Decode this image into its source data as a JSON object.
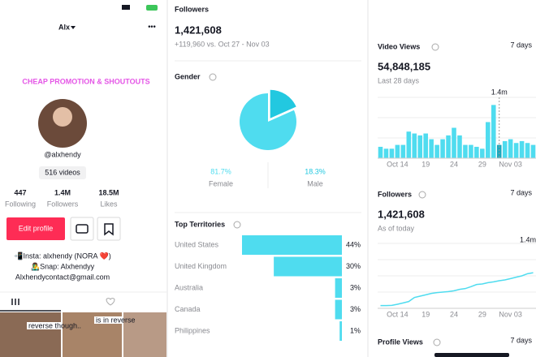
{
  "profile": {
    "username": "Alx",
    "banner": "CHEAP PROMOTION & SHOUTOUTS",
    "handle": "@alxhendy",
    "videos": "516 videos",
    "stats": [
      {
        "value": "447",
        "label": "Following"
      },
      {
        "value": "1.4M",
        "label": "Followers"
      },
      {
        "value": "18.5M",
        "label": "Likes"
      }
    ],
    "edit_button": "Edit profile",
    "bio": [
      "📲Insta: alxhendy (NORA ❤️)",
      "👨‍🎤Snap: Alxhendyy",
      "Alxhendycontact@gmail.com"
    ],
    "thumbnails": [
      "reverse though..",
      "is in reverse"
    ]
  },
  "followers": {
    "title": "Followers",
    "total": "1,421,608",
    "change": "+119,960 vs. Oct 27 - Nov 03"
  },
  "gender": {
    "title": "Gender",
    "chart_data": {
      "type": "pie",
      "categories": [
        "Female",
        "Male"
      ],
      "values": [
        81.7,
        18.3
      ],
      "value_labels": [
        "81.7%",
        "18.3%"
      ],
      "colors": [
        "#4fdcef",
        "#22c8e0"
      ]
    }
  },
  "territories": {
    "title": "Top Territories",
    "chart_data": {
      "type": "bar",
      "orientation": "horizontal",
      "categories": [
        "United States",
        "United Kingdom",
        "Australia",
        "Canada",
        "Philippines"
      ],
      "values": [
        44,
        30,
        3,
        3,
        1
      ],
      "value_labels": [
        "44%",
        "30%",
        "3%",
        "3%",
        "1%"
      ],
      "color": "#4fdcef"
    }
  },
  "video_views": {
    "title": "Video Views",
    "period": "7 days",
    "total": "54,848,185",
    "subtitle": "Last 28 days",
    "chart_data": {
      "type": "bar",
      "categories": [
        null,
        null,
        null,
        "Oct 14",
        null,
        null,
        null,
        null,
        "19",
        null,
        null,
        null,
        null,
        "24",
        null,
        null,
        null,
        null,
        "29",
        null,
        null,
        null,
        null,
        "Nov 03",
        null,
        null,
        null,
        null
      ],
      "values": [
        0.3,
        0.25,
        0.25,
        0.35,
        0.35,
        0.7,
        0.65,
        0.6,
        0.65,
        0.5,
        0.35,
        0.5,
        0.6,
        0.8,
        0.6,
        0.35,
        0.35,
        0.3,
        0.25,
        0.95,
        1.4,
        0.35,
        0.45,
        0.5,
        0.4,
        0.45,
        0.4,
        0.35
      ],
      "annotation": "1.4m",
      "color": "#4fdcef",
      "ylim": [
        0,
        1.6
      ]
    }
  },
  "followers_chart": {
    "title": "Followers",
    "period": "7 days",
    "total": "1,421,608",
    "subtitle": "As of today",
    "chart_data": {
      "type": "line",
      "categories": [
        null,
        null,
        null,
        "Oct 14",
        null,
        null,
        null,
        null,
        "19",
        null,
        null,
        null,
        null,
        "24",
        null,
        null,
        null,
        null,
        "29",
        null,
        null,
        null,
        null,
        "Nov 03",
        null,
        null,
        null,
        null
      ],
      "values": [
        1.3,
        1.3,
        1.301,
        1.305,
        1.31,
        1.315,
        1.33,
        1.335,
        1.34,
        1.345,
        1.348,
        1.35,
        1.352,
        1.355,
        1.36,
        1.363,
        1.37,
        1.378,
        1.38,
        1.385,
        1.388,
        1.392,
        1.395,
        1.4,
        1.405,
        1.41,
        1.418,
        1.4216
      ],
      "annotation": "1.4m",
      "color": "#4fdcef",
      "ylim": [
        1.29,
        1.53
      ],
      "grid": true
    }
  },
  "profile_views": {
    "title": "Profile Views",
    "period": "7 days"
  }
}
